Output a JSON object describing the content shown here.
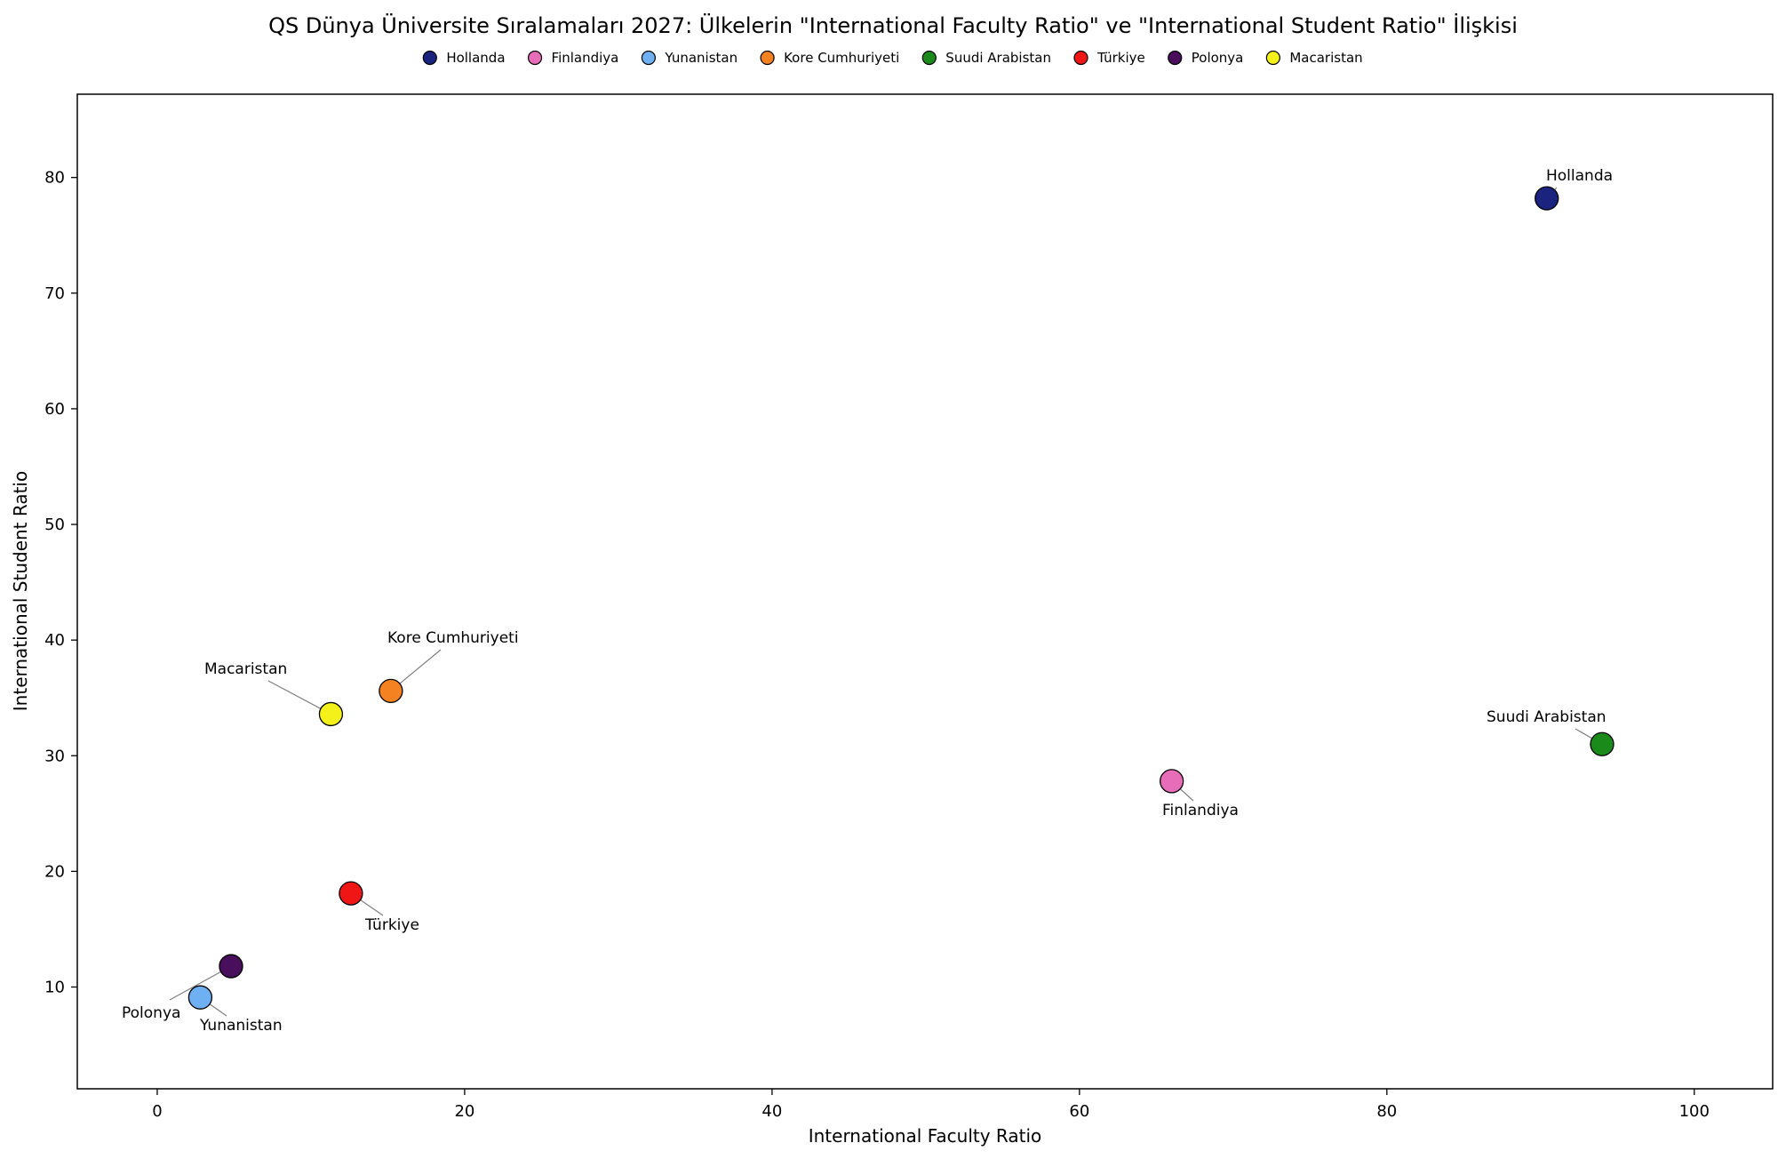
{
  "chart_data": {
    "type": "scatter",
    "title": "QS Dünya Üniversite Sıralamaları 2027: Ülkelerin \"International Faculty Ratio\" ve \"International Student Ratio\" İlişkisi",
    "xlabel": "International Faculty Ratio",
    "ylabel": "International Student Ratio",
    "xlim": [
      -5.2,
      105.1
    ],
    "ylim": [
      1.2,
      87.2
    ],
    "xticks": [
      0,
      20,
      40,
      60,
      80,
      100
    ],
    "yticks": [
      10,
      20,
      30,
      40,
      50,
      60,
      70,
      80
    ],
    "grid": false,
    "legend_position": "top-center",
    "series": [
      {
        "name": "Hollanda",
        "x": 90.4,
        "y": 78.2,
        "color": "#1a237e",
        "label_pos": "upper-right"
      },
      {
        "name": "Finlandiya",
        "x": 66.0,
        "y": 27.8,
        "color": "#e86db8",
        "label_pos": "below"
      },
      {
        "name": "Yunanistan",
        "x": 2.8,
        "y": 9.1,
        "color": "#6fb0f2",
        "label_pos": "lower-right"
      },
      {
        "name": "Kore Cumhuriyeti",
        "x": 15.2,
        "y": 35.6,
        "color": "#f58220",
        "label_pos": "upper-right"
      },
      {
        "name": "Suudi Arabistan",
        "x": 94.0,
        "y": 31.0,
        "color": "#1a8a1a",
        "label_pos": "upper-left"
      },
      {
        "name": "Türkiye",
        "x": 12.6,
        "y": 18.1,
        "color": "#f01616",
        "label_pos": "lower-right"
      },
      {
        "name": "Polonya",
        "x": 4.8,
        "y": 11.8,
        "color": "#4a0f5c",
        "label_pos": "lower-left"
      },
      {
        "name": "Macaristan",
        "x": 11.3,
        "y": 33.6,
        "color": "#f4f01a",
        "label_pos": "upper-left"
      }
    ]
  }
}
